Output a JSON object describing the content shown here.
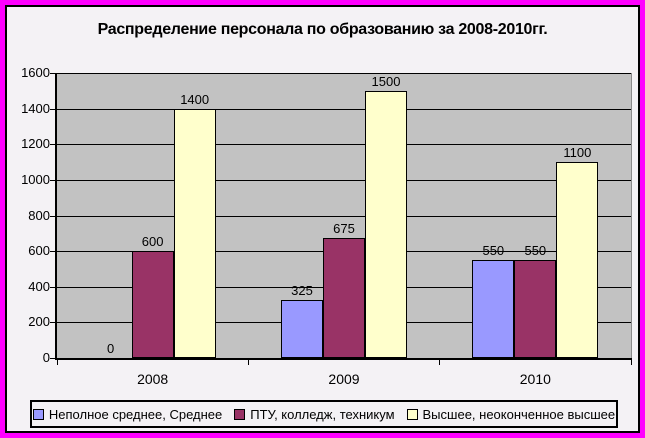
{
  "window": {
    "frame_color": "#ff00ff",
    "panel_bg": "#f4f2f5",
    "panel_border_color": "#000000"
  },
  "chart_data": {
    "type": "bar",
    "title": "Распределение персонала по образованию за 2008-2010гг.",
    "categories": [
      "2008",
      "2009",
      "2010"
    ],
    "series": [
      {
        "name": "Неполное среднее, Среднее",
        "color": "#9999ff",
        "values": [
          0,
          325,
          550
        ]
      },
      {
        "name": "ПТУ, колледж, техникум",
        "color": "#993366",
        "values": [
          600,
          675,
          550
        ]
      },
      {
        "name": "Высшее, неоконченное высшее",
        "color": "#ffffcc",
        "values": [
          1400,
          1500,
          1100
        ]
      }
    ],
    "ylim": [
      0,
      1600
    ],
    "ytick_step": 200,
    "yticks": [
      0,
      200,
      400,
      600,
      800,
      1000,
      1200,
      1400,
      1600
    ],
    "grid": true,
    "data_labels": true,
    "legend_position": "bottom",
    "plot_bg": "#c2c2c2",
    "gridline_color": "#000000"
  }
}
